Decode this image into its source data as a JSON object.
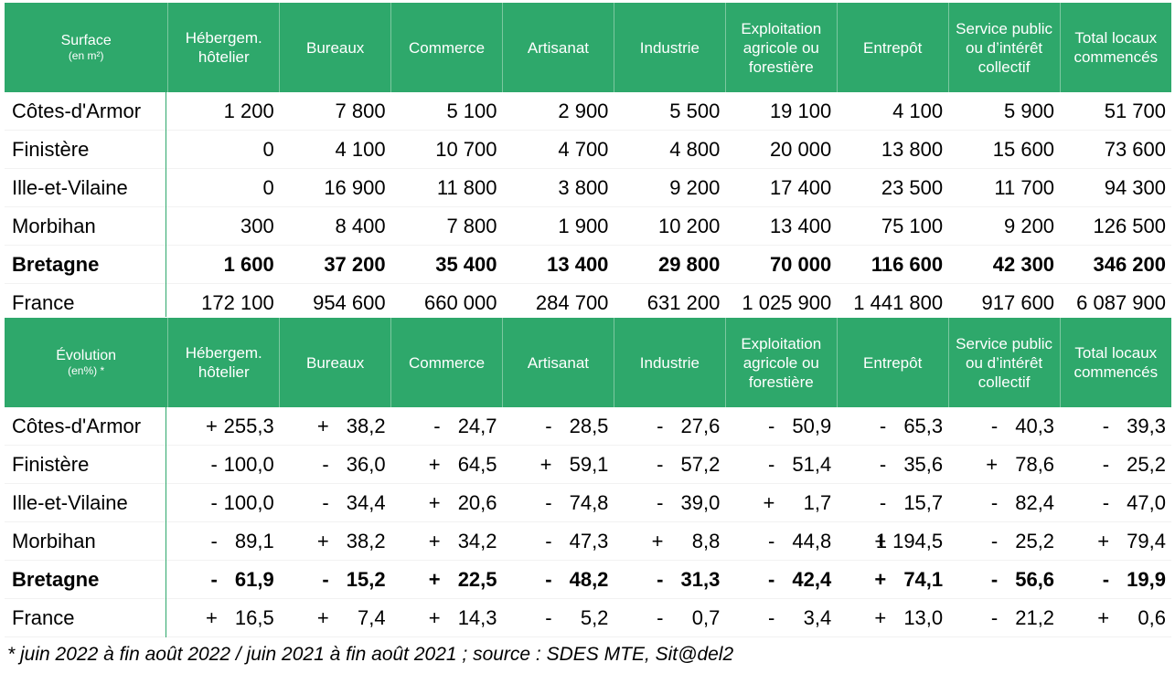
{
  "surface_table": {
    "header_label": "Surface",
    "header_unit": "(en m²)",
    "columns": [
      "Hébergem. hôtelier",
      "Bureaux",
      "Commerce",
      "Artisanat",
      "Industrie",
      "Exploitation agricole ou forestière",
      "Entrepôt",
      "Service public ou d’intérêt collectif",
      "Total locaux commencés"
    ],
    "rows": [
      {
        "name": "Côtes-d'Armor",
        "bold": false,
        "values": [
          "1 200",
          "7 800",
          "5 100",
          "2 900",
          "5 500",
          "19 100",
          "4 100",
          "5 900",
          "51 700"
        ]
      },
      {
        "name": "Finistère",
        "bold": false,
        "values": [
          "0",
          "4 100",
          "10 700",
          "4 700",
          "4 800",
          "20 000",
          "13 800",
          "15 600",
          "73 600"
        ]
      },
      {
        "name": "Ille-et-Vilaine",
        "bold": false,
        "values": [
          "0",
          "16 900",
          "11 800",
          "3 800",
          "9 200",
          "17 400",
          "23 500",
          "11 700",
          "94 300"
        ]
      },
      {
        "name": "Morbihan",
        "bold": false,
        "values": [
          "300",
          "8 400",
          "7 800",
          "1 900",
          "10 200",
          "13 400",
          "75 100",
          "9 200",
          "126 500"
        ]
      },
      {
        "name": "Bretagne",
        "bold": true,
        "values": [
          "1 600",
          "37 200",
          "35 400",
          "13 400",
          "29 800",
          "70 000",
          "116 600",
          "42 300",
          "346 200"
        ]
      },
      {
        "name": "France",
        "bold": false,
        "values": [
          "172 100",
          "954 600",
          "660 000",
          "284 700",
          "631 200",
          "1 025 900",
          "1 441 800",
          "917 600",
          "6 087 900"
        ]
      }
    ]
  },
  "evolution_table": {
    "header_label": "Évolution",
    "header_unit": "(en%) *",
    "columns": [
      "Hébergem. hôtelier",
      "Bureaux",
      "Commerce",
      "Artisanat",
      "Industrie",
      "Exploitation agricole ou forestière",
      "Entrepôt",
      "Service public ou d’intérêt collectif",
      "Total locaux commencés"
    ],
    "rows": [
      {
        "name": "Côtes-d'Armor",
        "bold": false,
        "values": [
          [
            "+",
            "255,3"
          ],
          [
            "+",
            "38,2"
          ],
          [
            "-",
            "24,7"
          ],
          [
            "-",
            "28,5"
          ],
          [
            "-",
            "27,6"
          ],
          [
            "-",
            "50,9"
          ],
          [
            "-",
            "65,3"
          ],
          [
            "-",
            "40,3"
          ],
          [
            "-",
            "39,3"
          ]
        ]
      },
      {
        "name": "Finistère",
        "bold": false,
        "values": [
          [
            "-",
            "100,0"
          ],
          [
            "-",
            "36,0"
          ],
          [
            "+",
            "64,5"
          ],
          [
            "+",
            "59,1"
          ],
          [
            "-",
            "57,2"
          ],
          [
            "-",
            "51,4"
          ],
          [
            "-",
            "35,6"
          ],
          [
            "+",
            "78,6"
          ],
          [
            "-",
            "25,2"
          ]
        ]
      },
      {
        "name": "Ille-et-Vilaine",
        "bold": false,
        "values": [
          [
            "-",
            "100,0"
          ],
          [
            "-",
            "34,4"
          ],
          [
            "+",
            "20,6"
          ],
          [
            "-",
            "74,8"
          ],
          [
            "-",
            "39,0"
          ],
          [
            "+",
            "1,7"
          ],
          [
            "-",
            "15,7"
          ],
          [
            "-",
            "82,4"
          ],
          [
            "-",
            "47,0"
          ]
        ]
      },
      {
        "name": "Morbihan",
        "bold": false,
        "values": [
          [
            "-",
            "89,1"
          ],
          [
            "+",
            "38,2"
          ],
          [
            "+",
            "34,2"
          ],
          [
            "-",
            "47,3"
          ],
          [
            "+",
            "8,8"
          ],
          [
            "-",
            "44,8"
          ],
          [
            "+",
            "1 194,5"
          ],
          [
            "-",
            "25,2"
          ],
          [
            "+",
            "79,4"
          ]
        ]
      },
      {
        "name": "Bretagne",
        "bold": true,
        "values": [
          [
            "-",
            "61,9"
          ],
          [
            "-",
            "15,2"
          ],
          [
            "+",
            "22,5"
          ],
          [
            "-",
            "48,2"
          ],
          [
            "-",
            "31,3"
          ],
          [
            "-",
            "42,4"
          ],
          [
            "+",
            "74,1"
          ],
          [
            "-",
            "56,6"
          ],
          [
            "-",
            "19,9"
          ]
        ]
      },
      {
        "name": "France",
        "bold": false,
        "values": [
          [
            "+",
            "16,5"
          ],
          [
            "+",
            "7,4"
          ],
          [
            "+",
            "14,3"
          ],
          [
            "-",
            "5,2"
          ],
          [
            "-",
            "0,7"
          ],
          [
            "-",
            "3,4"
          ],
          [
            "+",
            "13,0"
          ],
          [
            "-",
            "21,2"
          ],
          [
            "+",
            "0,6"
          ]
        ]
      }
    ]
  },
  "footnote": "* juin 2022 à fin août 2022 / juin 2021 à fin août 2021 ; source : SDES MTE, Sit@del2",
  "colors": {
    "header_bg": "#2EA86B",
    "header_text": "#FFFFFF"
  }
}
